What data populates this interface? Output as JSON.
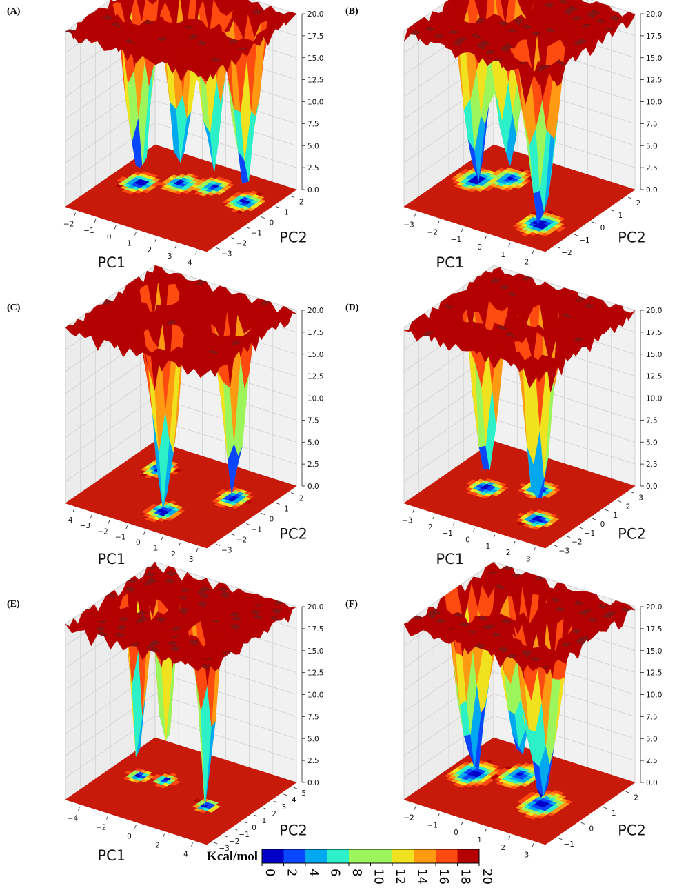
{
  "colors": {
    "levels": [
      "#0000c8",
      "#0a46ff",
      "#00a8f0",
      "#2bf0c8",
      "#9cf55a",
      "#f0e21e",
      "#ff9a12",
      "#ff4a10",
      "#b40000"
    ],
    "ceiling": "#8a1414",
    "floor": "#c81a0a"
  },
  "colorbar": {
    "title": "Kcal/mol",
    "ticks": [
      "0",
      "2",
      "4",
      "6",
      "8",
      "10",
      "12",
      "14",
      "16",
      "18",
      "20"
    ]
  },
  "chart_data": [
    {
      "type": "surface3d",
      "panel": "(A)",
      "xlabel": "PC1",
      "ylabel": "PC2",
      "zlabel": "",
      "x_ticks": [
        "−2",
        "−1",
        "0",
        "1",
        "2",
        "3",
        "4"
      ],
      "y_ticks": [
        "−3",
        "−2",
        "−1",
        "0",
        "1",
        "2"
      ],
      "z_ticks": [
        "0.0",
        "2.5",
        "5.0",
        "7.5",
        "10.0",
        "12.5",
        "15.0",
        "17.5",
        "20.0"
      ],
      "zlim": [
        0,
        20
      ],
      "xlim": [
        -2.5,
        4.3
      ],
      "ylim": [
        -3.2,
        2.4
      ],
      "minima": [
        {
          "x": -1.2,
          "y": -0.3,
          "depth": 0.3
        },
        {
          "x": 0.2,
          "y": 0.5,
          "depth": 1.5
        },
        {
          "x": 1.4,
          "y": 0.9,
          "depth": 2.5
        },
        {
          "x": 3.2,
          "y": 0.6,
          "depth": 1.5
        }
      ]
    },
    {
      "type": "surface3d",
      "panel": "(B)",
      "xlabel": "PC1",
      "ylabel": "PC2",
      "zlabel": "",
      "x_ticks": [
        "−3",
        "−2",
        "−1",
        "0",
        "1",
        "2"
      ],
      "y_ticks": [
        "−2",
        "−1",
        "0",
        "1",
        "2"
      ],
      "z_ticks": [
        "0.0",
        "2.5",
        "5.0",
        "7.5",
        "10.0",
        "12.5",
        "15.0",
        "17.5",
        "20.0"
      ],
      "zlim": [
        0,
        20
      ],
      "xlim": [
        -3.2,
        2.8
      ],
      "ylim": [
        -2.3,
        2.6
      ],
      "minima": [
        {
          "x": -2.2,
          "y": 0.4,
          "depth": 0.5
        },
        {
          "x": -1.3,
          "y": 1.0,
          "depth": 2
        },
        {
          "x": 1.5,
          "y": -0.9,
          "depth": 0.2
        }
      ]
    },
    {
      "type": "surface3d",
      "panel": "(C)",
      "xlabel": "PC1",
      "ylabel": "PC2",
      "zlabel": "",
      "x_ticks": [
        "−4",
        "−3",
        "−2",
        "−1",
        "0",
        "1",
        "2",
        "3"
      ],
      "y_ticks": [
        "−3",
        "−2",
        "−1",
        "0",
        "1",
        "2"
      ],
      "z_ticks": [
        "0.0",
        "2.5",
        "5.0",
        "7.5",
        "10.0",
        "12.5",
        "15.0",
        "17.5",
        "20.0"
      ],
      "zlim": [
        0,
        20
      ],
      "xlim": [
        -4.5,
        3.3
      ],
      "ylim": [
        -3.3,
        2.6
      ],
      "minima": [
        {
          "x": -2.8,
          "y": 0.9,
          "depth": 1
        },
        {
          "x": -0.3,
          "y": -1.8,
          "depth": 0.3
        },
        {
          "x": 1.6,
          "y": 0.5,
          "depth": 0.5
        }
      ]
    },
    {
      "type": "surface3d",
      "panel": "(D)",
      "xlabel": "PC1",
      "ylabel": "PC2",
      "zlabel": "",
      "x_ticks": [
        "−3",
        "−2",
        "−1",
        "0",
        "1",
        "2",
        "3"
      ],
      "y_ticks": [
        "−3",
        "−2",
        "−1",
        "0",
        "1",
        "2",
        "3"
      ],
      "z_ticks": [
        "0.0",
        "2.5",
        "5.0",
        "7.5",
        "10.0",
        "12.5",
        "15.0",
        "17.5",
        "20.0"
      ],
      "zlim": [
        0,
        20
      ],
      "xlim": [
        -3.4,
        3.4
      ],
      "ylim": [
        -3.3,
        3.3
      ],
      "minima": [
        {
          "x": -1.4,
          "y": -0.3,
          "depth": 0.5
        },
        {
          "x": 0.4,
          "y": 0.8,
          "depth": 1
        },
        {
          "x": 1.8,
          "y": -1.4,
          "depth": 0.5
        }
      ]
    },
    {
      "type": "surface3d",
      "panel": "(E)",
      "xlabel": "PC1",
      "ylabel": "PC2",
      "zlabel": "",
      "x_ticks": [
        "−4",
        "−2",
        "0",
        "2",
        "4"
      ],
      "y_ticks": [
        "−3",
        "−2",
        "−1",
        "0",
        "1",
        "2",
        "3",
        "4",
        "5"
      ],
      "z_ticks": [
        "0.0",
        "2.5",
        "5.0",
        "7.5",
        "10.0",
        "12.5",
        "15.0",
        "17.5",
        "20.0"
      ],
      "zlim": [
        0,
        20
      ],
      "xlim": [
        -4.5,
        5.5
      ],
      "ylim": [
        -3.3,
        5.4
      ],
      "minima": [
        {
          "x": -2.6,
          "y": 1.2,
          "depth": 1
        },
        {
          "x": -1.0,
          "y": 1.6,
          "depth": 2
        },
        {
          "x": 2.8,
          "y": 0.4,
          "depth": 0.4
        }
      ]
    },
    {
      "type": "surface3d",
      "panel": "(F)",
      "xlabel": "PC1",
      "ylabel": "PC2",
      "zlabel": "",
      "x_ticks": [
        "−2",
        "−1",
        "0",
        "1",
        "2",
        "3"
      ],
      "y_ticks": [
        "−1",
        "0",
        "1",
        "2"
      ],
      "z_ticks": [
        "0.0",
        "2.5",
        "5.0",
        "7.5",
        "10.0",
        "12.5",
        "15.0",
        "17.5",
        "20.0"
      ],
      "zlim": [
        0,
        20
      ],
      "xlim": [
        -2.5,
        3.3
      ],
      "ylim": [
        -1.6,
        2.6
      ],
      "minima": [
        {
          "x": -1.6,
          "y": 0.6,
          "depth": 0.5
        },
        {
          "x": -0.2,
          "y": 1.2,
          "depth": 2
        },
        {
          "x": 1.6,
          "y": 0.2,
          "depth": 0.3
        }
      ]
    }
  ]
}
